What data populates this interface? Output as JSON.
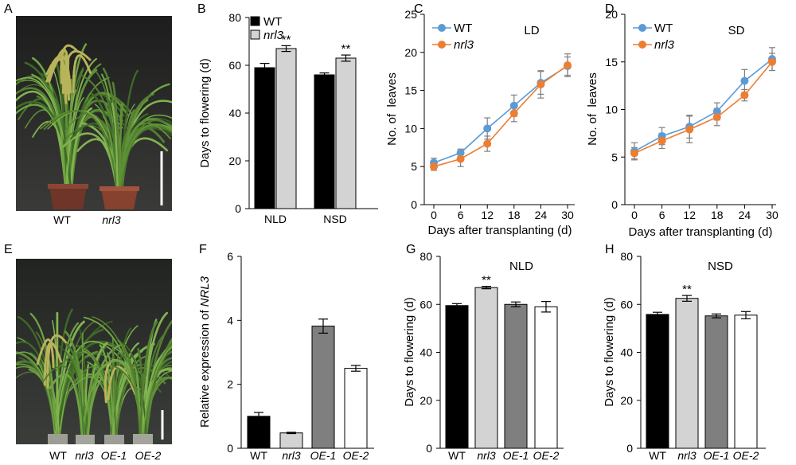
{
  "photos": [
    {
      "panel": "A",
      "labels": [
        "WT",
        "nrl3"
      ]
    },
    {
      "panel": "E",
      "labels": [
        "WT",
        "nrl3",
        "OE-1",
        "OE-2"
      ]
    }
  ],
  "chart_data": [
    {
      "panel": "B",
      "type": "bar",
      "categories": [
        "NLD",
        "NSD"
      ],
      "series": [
        {
          "name": "WT",
          "values": [
            59,
            56
          ],
          "errors": [
            1.8,
            0.8
          ],
          "marks": [
            "",
            ""
          ],
          "color": "#000000"
        },
        {
          "name": "nrl3",
          "values": [
            67,
            63
          ],
          "errors": [
            1.2,
            1.3
          ],
          "marks": [
            "**",
            "**"
          ],
          "color": "#d3d3d3"
        }
      ],
      "ylabel": "Days to flowering (d)",
      "ylim": [
        0,
        80
      ],
      "yticks": [
        0,
        20,
        40,
        60,
        80
      ],
      "legend": "top-left",
      "grid": false
    },
    {
      "panel": "C",
      "type": "line",
      "title": "LD",
      "x": [
        0,
        6,
        12,
        18,
        24,
        30
      ],
      "series": [
        {
          "name": "WT",
          "values": [
            5.5,
            6.8,
            10,
            13,
            16,
            18.2
          ],
          "errors": [
            0.6,
            0.5,
            1.4,
            1.4,
            1.5,
            1.2
          ],
          "color": "#5b9bd5"
        },
        {
          "name": "nrl3",
          "values": [
            5,
            6,
            8,
            12,
            15.8,
            18.3
          ],
          "errors": [
            0.5,
            1.0,
            1.0,
            1.1,
            1.8,
            1.5
          ],
          "color": "#ed7d31"
        }
      ],
      "xlabel": "Days after transplanting (d)",
      "ylabel": "No. of  leaves",
      "ylim": [
        0,
        25
      ],
      "yticks": [
        0,
        5,
        10,
        15,
        20,
        25
      ],
      "legend": "top-left",
      "grid": false
    },
    {
      "panel": "D",
      "type": "line",
      "title": "SD",
      "x": [
        0,
        6,
        12,
        18,
        24,
        30
      ],
      "series": [
        {
          "name": "WT",
          "values": [
            5.6,
            7.2,
            8.2,
            9.8,
            13,
            15.3
          ],
          "errors": [
            0.9,
            0.9,
            1.2,
            0.9,
            1.2,
            1.2
          ],
          "color": "#5b9bd5"
        },
        {
          "name": "nrl3",
          "values": [
            5.4,
            6.7,
            7.9,
            9.2,
            11.5,
            15
          ],
          "errors": [
            0.6,
            0.8,
            1.4,
            0.9,
            0.6,
            0.9
          ],
          "color": "#ed7d31"
        }
      ],
      "xlabel": "Days after transplanting (d)",
      "ylabel": "No. of  leaves",
      "ylim": [
        0,
        20
      ],
      "yticks": [
        0,
        5,
        10,
        15,
        20
      ],
      "legend": "top-left",
      "grid": false
    },
    {
      "panel": "F",
      "type": "bar",
      "categories": [
        "WT",
        "nrl3",
        "OE-1",
        "OE-2"
      ],
      "values": [
        1.0,
        0.48,
        3.82,
        2.5
      ],
      "errors": [
        0.12,
        0.02,
        0.22,
        0.09
      ],
      "marks": [
        "",
        "",
        "",
        ""
      ],
      "colors": [
        "#000000",
        "#d3d3d3",
        "#7f7f7f",
        "#ffffff"
      ],
      "ylabel": "Relative expression of",
      "ylabel_gene": "NRL3",
      "ylim": [
        0,
        6
      ],
      "yticks": [
        0,
        2,
        4,
        6
      ],
      "grid": false
    },
    {
      "panel": "G",
      "type": "bar",
      "title": "NLD",
      "categories": [
        "WT",
        "nrl3",
        "OE-1",
        "OE-2"
      ],
      "values": [
        59.5,
        67,
        60,
        59
      ],
      "errors": [
        0.8,
        0.5,
        1.0,
        2.2
      ],
      "marks": [
        "",
        "**",
        "",
        ""
      ],
      "colors": [
        "#000000",
        "#d3d3d3",
        "#7f7f7f",
        "#ffffff"
      ],
      "ylabel": "Days to flowering (d)",
      "ylim": [
        0,
        80
      ],
      "yticks": [
        0,
        20,
        40,
        60,
        80
      ],
      "grid": false
    },
    {
      "panel": "H",
      "type": "bar",
      "title": "NSD",
      "categories": [
        "WT",
        "nrl3",
        "OE-1",
        "OE-2"
      ],
      "values": [
        55.8,
        62.5,
        55.2,
        55.5
      ],
      "errors": [
        0.9,
        1.2,
        0.8,
        1.5
      ],
      "marks": [
        "",
        "**",
        "",
        ""
      ],
      "colors": [
        "#000000",
        "#d3d3d3",
        "#7f7f7f",
        "#ffffff"
      ],
      "ylabel": "Days to flowering (d)",
      "ylim": [
        0,
        80
      ],
      "yticks": [
        0,
        20,
        40,
        60,
        80
      ],
      "grid": false
    }
  ]
}
